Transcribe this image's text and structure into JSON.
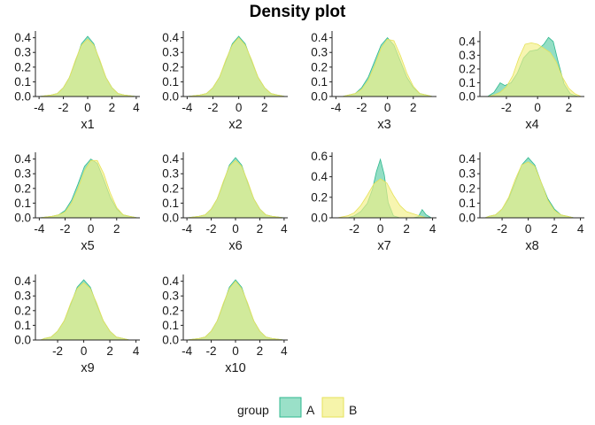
{
  "chart_data": {
    "type": "area",
    "title": "Density plot",
    "legend": {
      "title": "group",
      "position": "bottom",
      "entries": [
        {
          "name": "A",
          "fill": "#6fd3b0",
          "stroke": "#2fb88f"
        },
        {
          "name": "B",
          "fill": "#f2ef86",
          "stroke": "#e6e25a"
        }
      ]
    },
    "grid": false,
    "panels": [
      {
        "xlabel": "x1",
        "xlim": [
          -4.3,
          4.3
        ],
        "xticks": [
          -4,
          -2,
          0,
          2,
          4
        ],
        "ylim": [
          0,
          0.44
        ],
        "yticks": [
          0.0,
          0.1,
          0.2,
          0.3,
          0.4
        ],
        "ytick_labels": [
          "0.0",
          "0.1",
          "0.2",
          "0.3",
          "0.4"
        ],
        "series": [
          {
            "name": "A",
            "x": [
              -4,
              -3,
              -2.5,
              -2,
              -1.5,
              -1,
              -0.5,
              0,
              0.5,
              1,
              1.5,
              2,
              2.5,
              3,
              4
            ],
            "y": [
              0.0,
              0.01,
              0.02,
              0.06,
              0.13,
              0.24,
              0.36,
              0.41,
              0.36,
              0.24,
              0.13,
              0.06,
              0.02,
              0.01,
              0.0
            ]
          },
          {
            "name": "B",
            "x": [
              -4,
              -3,
              -2.5,
              -2,
              -1.5,
              -1,
              -0.5,
              0,
              0.5,
              1,
              1.5,
              2,
              2.5,
              3,
              4
            ],
            "y": [
              0.0,
              0.01,
              0.02,
              0.06,
              0.13,
              0.25,
              0.35,
              0.39,
              0.35,
              0.25,
              0.13,
              0.06,
              0.02,
              0.01,
              0.0
            ]
          }
        ]
      },
      {
        "xlabel": "x2",
        "xlim": [
          -4.3,
          3.8
        ],
        "xticks": [
          -4,
          -2,
          0,
          2
        ],
        "ylim": [
          0,
          0.44
        ],
        "yticks": [
          0.0,
          0.1,
          0.2,
          0.3,
          0.4
        ],
        "ytick_labels": [
          "0.0",
          "0.1",
          "0.2",
          "0.3",
          "0.4"
        ],
        "series": [
          {
            "name": "A",
            "x": [
              -4,
              -3,
              -2.5,
              -2,
              -1.5,
              -1,
              -0.5,
              0,
              0.5,
              1,
              1.5,
              2,
              2.5,
              3,
              3.6
            ],
            "y": [
              0.0,
              0.01,
              0.02,
              0.06,
              0.13,
              0.24,
              0.36,
              0.41,
              0.36,
              0.24,
              0.13,
              0.06,
              0.02,
              0.01,
              0.0
            ]
          },
          {
            "name": "B",
            "x": [
              -4,
              -3,
              -2.5,
              -2,
              -1.5,
              -1,
              -0.5,
              0,
              0.5,
              1,
              1.5,
              2,
              2.5,
              3,
              3.6
            ],
            "y": [
              0.0,
              0.01,
              0.02,
              0.06,
              0.13,
              0.25,
              0.35,
              0.4,
              0.35,
              0.25,
              0.13,
              0.06,
              0.02,
              0.01,
              0.0
            ]
          }
        ]
      },
      {
        "xlabel": "x3",
        "xlim": [
          -4.3,
          3.8
        ],
        "xticks": [
          -4,
          -2,
          0,
          2
        ],
        "ylim": [
          0,
          0.44
        ],
        "yticks": [
          0.0,
          0.1,
          0.2,
          0.3,
          0.4
        ],
        "ytick_labels": [
          "0.0",
          "0.1",
          "0.2",
          "0.3",
          "0.4"
        ],
        "series": [
          {
            "name": "A",
            "x": [
              -3.5,
              -3,
              -2.5,
              -2,
              -1.5,
              -1,
              -0.5,
              0,
              0.5,
              1,
              1.5,
              2,
              2.5,
              3,
              3.5
            ],
            "y": [
              0.0,
              0.01,
              0.02,
              0.06,
              0.13,
              0.24,
              0.35,
              0.4,
              0.35,
              0.24,
              0.13,
              0.06,
              0.02,
              0.01,
              0.0
            ]
          },
          {
            "name": "B",
            "x": [
              -3.5,
              -3,
              -2.5,
              -2,
              -1.5,
              -1,
              -0.5,
              0,
              0.5,
              1,
              1.5,
              2,
              2.5,
              3,
              3.5
            ],
            "y": [
              0.0,
              0.01,
              0.02,
              0.05,
              0.11,
              0.21,
              0.33,
              0.39,
              0.38,
              0.28,
              0.16,
              0.07,
              0.02,
              0.01,
              0.0
            ]
          }
        ]
      },
      {
        "xlabel": "x4",
        "xlim": [
          -3.7,
          3.0
        ],
        "xticks": [
          -2,
          0,
          2
        ],
        "ylim": [
          0,
          0.47
        ],
        "yticks": [
          0.0,
          0.1,
          0.2,
          0.3,
          0.4
        ],
        "ytick_labels": [
          "0.0",
          "0.1",
          "0.2",
          "0.3",
          "0.4"
        ],
        "series": [
          {
            "name": "A",
            "x": [
              -3.2,
              -2.8,
              -2.4,
              -2.1,
              -1.7,
              -1.3,
              -0.9,
              -0.5,
              0,
              0.4,
              0.7,
              1.0,
              1.3,
              1.7,
              2.1,
              2.6
            ],
            "y": [
              0.0,
              0.03,
              0.1,
              0.08,
              0.1,
              0.17,
              0.28,
              0.33,
              0.34,
              0.38,
              0.43,
              0.4,
              0.26,
              0.09,
              0.02,
              0.0
            ]
          },
          {
            "name": "B",
            "x": [
              -3.2,
              -2.8,
              -2.4,
              -2.0,
              -1.6,
              -1.2,
              -0.8,
              -0.4,
              0,
              0.4,
              0.8,
              1.2,
              1.6,
              2.0,
              2.4,
              2.8
            ],
            "y": [
              0.0,
              0.01,
              0.03,
              0.07,
              0.15,
              0.28,
              0.38,
              0.39,
              0.38,
              0.35,
              0.32,
              0.25,
              0.14,
              0.06,
              0.02,
              0.0
            ]
          }
        ]
      },
      {
        "xlabel": "x5",
        "xlim": [
          -4.3,
          3.8
        ],
        "xticks": [
          -4,
          -2,
          0,
          2
        ],
        "ylim": [
          0,
          0.44
        ],
        "yticks": [
          0.0,
          0.1,
          0.2,
          0.3,
          0.4
        ],
        "ytick_labels": [
          "0.0",
          "0.1",
          "0.2",
          "0.3",
          "0.4"
        ],
        "series": [
          {
            "name": "A",
            "x": [
              -4,
              -3,
              -2.5,
              -2,
              -1.5,
              -1,
              -0.5,
              0,
              0.5,
              1,
              1.5,
              2,
              2.5,
              3,
              3.6
            ],
            "y": [
              0.0,
              0.01,
              0.02,
              0.05,
              0.12,
              0.23,
              0.35,
              0.4,
              0.37,
              0.26,
              0.14,
              0.06,
              0.02,
              0.01,
              0.0
            ]
          },
          {
            "name": "B",
            "x": [
              -4,
              -3,
              -2.5,
              -2,
              -1.5,
              -1,
              -0.5,
              0,
              0.5,
              1,
              1.5,
              2,
              2.5,
              3,
              3.6
            ],
            "y": [
              0.0,
              0.01,
              0.02,
              0.04,
              0.1,
              0.2,
              0.32,
              0.39,
              0.39,
              0.3,
              0.17,
              0.07,
              0.02,
              0.01,
              0.0
            ]
          }
        ]
      },
      {
        "xlabel": "x6",
        "xlim": [
          -4.3,
          4.3
        ],
        "xticks": [
          -4,
          -2,
          0,
          2,
          4
        ],
        "ylim": [
          0,
          0.44
        ],
        "yticks": [
          0.0,
          0.1,
          0.2,
          0.3,
          0.4
        ],
        "ytick_labels": [
          "0.0",
          "0.1",
          "0.2",
          "0.3",
          "0.4"
        ],
        "series": [
          {
            "name": "A",
            "x": [
              -4,
              -3,
              -2.5,
              -2,
              -1.5,
              -1,
              -0.5,
              0,
              0.5,
              1,
              1.5,
              2,
              2.5,
              3,
              4
            ],
            "y": [
              0.0,
              0.01,
              0.02,
              0.06,
              0.13,
              0.24,
              0.36,
              0.41,
              0.36,
              0.24,
              0.13,
              0.06,
              0.02,
              0.01,
              0.0
            ]
          },
          {
            "name": "B",
            "x": [
              -4,
              -3,
              -2.5,
              -2,
              -1.5,
              -1,
              -0.5,
              0,
              0.5,
              1,
              1.5,
              2,
              2.5,
              3,
              4
            ],
            "y": [
              0.0,
              0.01,
              0.02,
              0.06,
              0.13,
              0.25,
              0.35,
              0.39,
              0.35,
              0.25,
              0.13,
              0.06,
              0.02,
              0.01,
              0.0
            ]
          }
        ]
      },
      {
        "xlabel": "x7",
        "xlim": [
          -3.7,
          4.3
        ],
        "xticks": [
          -2,
          0,
          2,
          4
        ],
        "ylim": [
          0,
          0.63
        ],
        "yticks": [
          0.0,
          0.2,
          0.4,
          0.6
        ],
        "ytick_labels": [
          "0.0",
          "0.2",
          "0.4",
          "0.6"
        ],
        "series": [
          {
            "name": "A",
            "x": [
              -3.3,
              -2.5,
              -2.0,
              -1.5,
              -1.0,
              -0.6,
              -0.3,
              0,
              0.3,
              0.6,
              1.0,
              1.5,
              2.0,
              2.5,
              2.9,
              3.2,
              3.5,
              3.9
            ],
            "y": [
              0.0,
              0.0,
              0.02,
              0.06,
              0.14,
              0.28,
              0.45,
              0.57,
              0.42,
              0.15,
              0.02,
              0.0,
              0.0,
              0.0,
              0.01,
              0.08,
              0.03,
              0.0
            ]
          },
          {
            "name": "B",
            "x": [
              -3.3,
              -2.5,
              -2.0,
              -1.5,
              -1.0,
              -0.5,
              0,
              0.5,
              1.0,
              1.5,
              2.0,
              2.5,
              3.0,
              3.5
            ],
            "y": [
              0.0,
              0.02,
              0.05,
              0.12,
              0.22,
              0.33,
              0.38,
              0.34,
              0.22,
              0.12,
              0.06,
              0.04,
              0.02,
              0.0
            ]
          }
        ]
      },
      {
        "xlabel": "x8",
        "xlim": [
          -3.7,
          4.3
        ],
        "xticks": [
          -2,
          0,
          2,
          4
        ],
        "ylim": [
          0,
          0.44
        ],
        "yticks": [
          0.0,
          0.1,
          0.2,
          0.3,
          0.4
        ],
        "ytick_labels": [
          "0.0",
          "0.1",
          "0.2",
          "0.3",
          "0.4"
        ],
        "series": [
          {
            "name": "A",
            "x": [
              -3.3,
              -3,
              -2.5,
              -2,
              -1.5,
              -1,
              -0.5,
              0,
              0.5,
              1,
              1.5,
              2,
              2.5,
              3,
              3.5
            ],
            "y": [
              0.0,
              0.01,
              0.02,
              0.06,
              0.13,
              0.24,
              0.36,
              0.41,
              0.36,
              0.24,
              0.13,
              0.06,
              0.02,
              0.01,
              0.0
            ]
          },
          {
            "name": "B",
            "x": [
              -3.3,
              -3,
              -2.5,
              -2,
              -1.5,
              -1,
              -0.5,
              0,
              0.5,
              1,
              1.5,
              2,
              2.5,
              3,
              3.5
            ],
            "y": [
              0.0,
              0.01,
              0.02,
              0.06,
              0.14,
              0.26,
              0.36,
              0.38,
              0.35,
              0.24,
              0.12,
              0.05,
              0.02,
              0.01,
              0.0
            ]
          }
        ]
      },
      {
        "xlabel": "x9",
        "xlim": [
          -3.7,
          4.3
        ],
        "xticks": [
          -2,
          0,
          2,
          4
        ],
        "ylim": [
          0,
          0.44
        ],
        "yticks": [
          0.0,
          0.1,
          0.2,
          0.3,
          0.4
        ],
        "ytick_labels": [
          "0.0",
          "0.1",
          "0.2",
          "0.3",
          "0.4"
        ],
        "series": [
          {
            "name": "A",
            "x": [
              -3.3,
              -3,
              -2.5,
              -2,
              -1.5,
              -1,
              -0.5,
              0,
              0.5,
              1,
              1.5,
              2,
              2.5,
              3,
              3.5
            ],
            "y": [
              0.0,
              0.01,
              0.02,
              0.06,
              0.13,
              0.24,
              0.36,
              0.41,
              0.36,
              0.24,
              0.13,
              0.06,
              0.02,
              0.01,
              0.0
            ]
          },
          {
            "name": "B",
            "x": [
              -3.3,
              -3,
              -2.5,
              -2,
              -1.5,
              -1,
              -0.5,
              0,
              0.5,
              1,
              1.5,
              2,
              2.5,
              3,
              3.5
            ],
            "y": [
              0.0,
              0.01,
              0.02,
              0.06,
              0.13,
              0.25,
              0.35,
              0.39,
              0.35,
              0.25,
              0.13,
              0.06,
              0.02,
              0.01,
              0.0
            ]
          }
        ]
      },
      {
        "xlabel": "x10",
        "xlim": [
          -4.3,
          4.3
        ],
        "xticks": [
          -4,
          -2,
          0,
          2,
          4
        ],
        "ylim": [
          0,
          0.44
        ],
        "yticks": [
          0.0,
          0.1,
          0.2,
          0.3,
          0.4
        ],
        "ytick_labels": [
          "0.0",
          "0.1",
          "0.2",
          "0.3",
          "0.4"
        ],
        "series": [
          {
            "name": "A",
            "x": [
              -4,
              -3,
              -2.5,
              -2,
              -1.5,
              -1,
              -0.5,
              0,
              0.5,
              1,
              1.5,
              2,
              2.5,
              3,
              4
            ],
            "y": [
              0.0,
              0.01,
              0.02,
              0.06,
              0.13,
              0.24,
              0.36,
              0.41,
              0.36,
              0.24,
              0.13,
              0.06,
              0.02,
              0.01,
              0.0
            ]
          },
          {
            "name": "B",
            "x": [
              -4,
              -3,
              -2.5,
              -2,
              -1.5,
              -1,
              -0.5,
              0,
              0.5,
              1,
              1.5,
              2,
              2.5,
              3,
              4
            ],
            "y": [
              0.0,
              0.01,
              0.02,
              0.06,
              0.13,
              0.25,
              0.35,
              0.4,
              0.35,
              0.25,
              0.13,
              0.06,
              0.02,
              0.01,
              0.0
            ]
          }
        ]
      }
    ]
  }
}
